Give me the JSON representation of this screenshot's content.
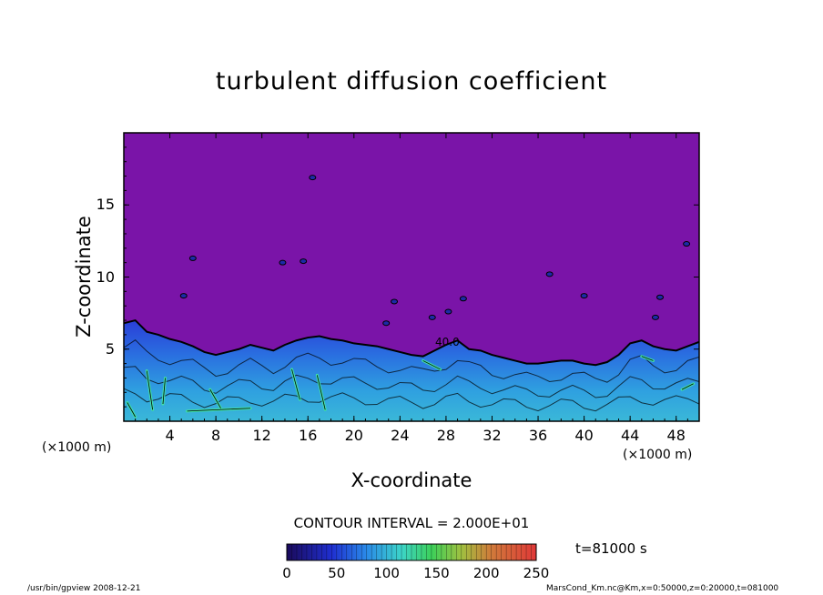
{
  "chart_data": {
    "type": "heatmap",
    "title": "turbulent diffusion coefficient",
    "xlabel": "X-coordinate",
    "ylabel": "Z-coordinate",
    "x_unit": "(×1000 m)",
    "y_unit": "(×1000 m)",
    "xlim": [
      0,
      50
    ],
    "ylim": [
      0,
      20
    ],
    "x_ticks": [
      4,
      8,
      12,
      16,
      20,
      24,
      28,
      32,
      36,
      40,
      44,
      48
    ],
    "y_ticks": [
      5,
      10,
      15
    ],
    "contour_interval": "CONTOUR INTERVAL = 2.000E+01",
    "colorbar": {
      "ticks": [
        0,
        50,
        100,
        150,
        200,
        250
      ],
      "range": [
        0,
        250
      ]
    },
    "time_label": "t=81000 s",
    "annotation": "40.0",
    "background_value": 0,
    "turbulent_layer_top_km": [
      6.8,
      7.0,
      6.2,
      6.0,
      5.7,
      5.5,
      5.2,
      4.8,
      4.6,
      4.8,
      5.0,
      5.3,
      5.1,
      4.9,
      5.3,
      5.6,
      5.8,
      5.9,
      5.7,
      5.6,
      5.4,
      5.3,
      5.2,
      5.0,
      4.8,
      4.6,
      4.5,
      4.9,
      5.3,
      5.6,
      5.0,
      4.9,
      4.6,
      4.4,
      4.2,
      4.0,
      4.0,
      4.1,
      4.2,
      4.2,
      4.0,
      3.9,
      4.1,
      4.6,
      5.4,
      5.6,
      5.2,
      5.0,
      4.9,
      5.2,
      5.5
    ]
  },
  "footer": {
    "left": "/usr/bin/gpview   2008-12-21",
    "right": "MarsCond_Km.nc@Km,x=0:50000,z=0:20000,t=081000"
  }
}
